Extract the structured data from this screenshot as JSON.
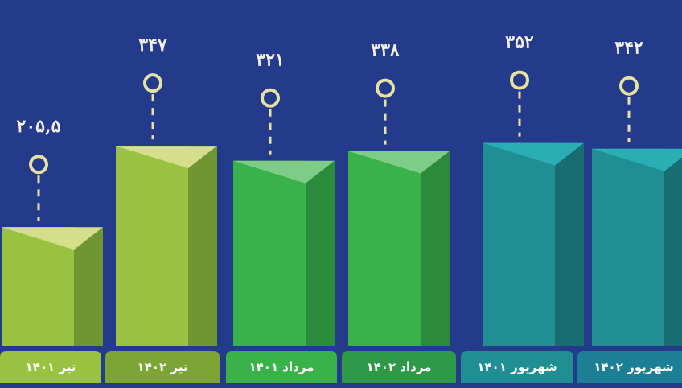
{
  "chart_data": {
    "type": "bar",
    "title": "",
    "xlabel": "",
    "ylabel": "",
    "categories": [
      "تیر ۱۴۰۱",
      "تیر ۱۴۰۲",
      "مرداد ۱۴۰۱",
      "مرداد ۱۴۰۲",
      "شهریور ۱۴۰۱",
      "شهریور ۱۴۰۲"
    ],
    "values": [
      205.5,
      347,
      321,
      338,
      352,
      342
    ],
    "value_labels": [
      "۲۰۵,۵",
      "۳۴۷",
      "۳۲۱",
      "۳۳۸",
      "۳۵۲",
      "۳۴۲"
    ],
    "grid": false,
    "legend": "none"
  },
  "colors": {
    "background": "#243b8c",
    "marker": "#e7e2a0",
    "bars": [
      {
        "front": "#98c23f",
        "side": "#6f9630",
        "top": "#d5df8a",
        "tab": "#98c23f"
      },
      {
        "front": "#98c23f",
        "side": "#6f9630",
        "top": "#d5df8a",
        "tab": "#7da536"
      },
      {
        "front": "#39b24a",
        "side": "#2a8b3a",
        "top": "#7fcc88",
        "tab": "#39b24a"
      },
      {
        "front": "#39b24a",
        "side": "#2a8b3a",
        "top": "#7fcc88",
        "tab": "#2e9a48"
      },
      {
        "front": "#1f8f94",
        "side": "#176d72",
        "top": "#2aaeb3",
        "tab": "#1f8f94"
      },
      {
        "front": "#1f8f94",
        "side": "#176d72",
        "top": "#2aaeb3",
        "tab": "#1d7f96"
      }
    ]
  }
}
